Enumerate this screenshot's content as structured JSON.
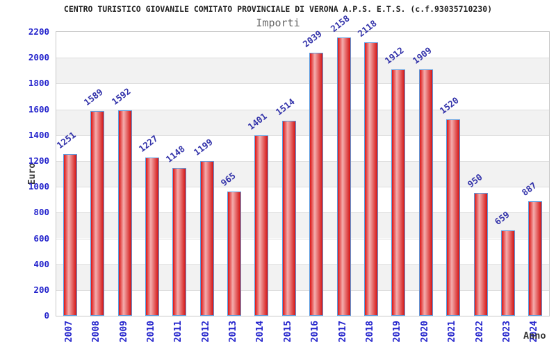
{
  "chart_data": {
    "type": "bar",
    "title": "CENTRO TURISTICO GIOVANILE COMITATO PROVINCIALE DI VERONA A.P.S. E.T.S. (c.f.93035710230)",
    "subtitle": "Importi",
    "xlabel": "Anno",
    "ylabel": "Euro",
    "categories": [
      "2007",
      "2008",
      "2009",
      "2010",
      "2011",
      "2012",
      "2013",
      "2014",
      "2015",
      "2016",
      "2017",
      "2018",
      "2019",
      "2020",
      "2021",
      "2022",
      "2023",
      "2024"
    ],
    "values": [
      1251,
      1589,
      1592,
      1227,
      1148,
      1199,
      965,
      1401,
      1514,
      2039,
      2158,
      2118,
      1912,
      1909,
      1520,
      950,
      659,
      887
    ],
    "ylim": [
      0,
      2200
    ],
    "ytick_step": 200,
    "grid": true,
    "legend_position": "none",
    "colors": {
      "bar_edge": "#5b9ce0",
      "bar_fill_dark": "#dc1515",
      "bar_fill_light": "#f4adad",
      "bar_fill_dark_right": "#d31212",
      "tick_label": "#2323cc",
      "value_label": "#3333aa",
      "axis_name": "#333333",
      "title": "#222222",
      "subtitle": "#666666",
      "band": "#f2f2f2",
      "gridline": "#dcdcdc",
      "plot_border": "#c8c8c8"
    }
  }
}
